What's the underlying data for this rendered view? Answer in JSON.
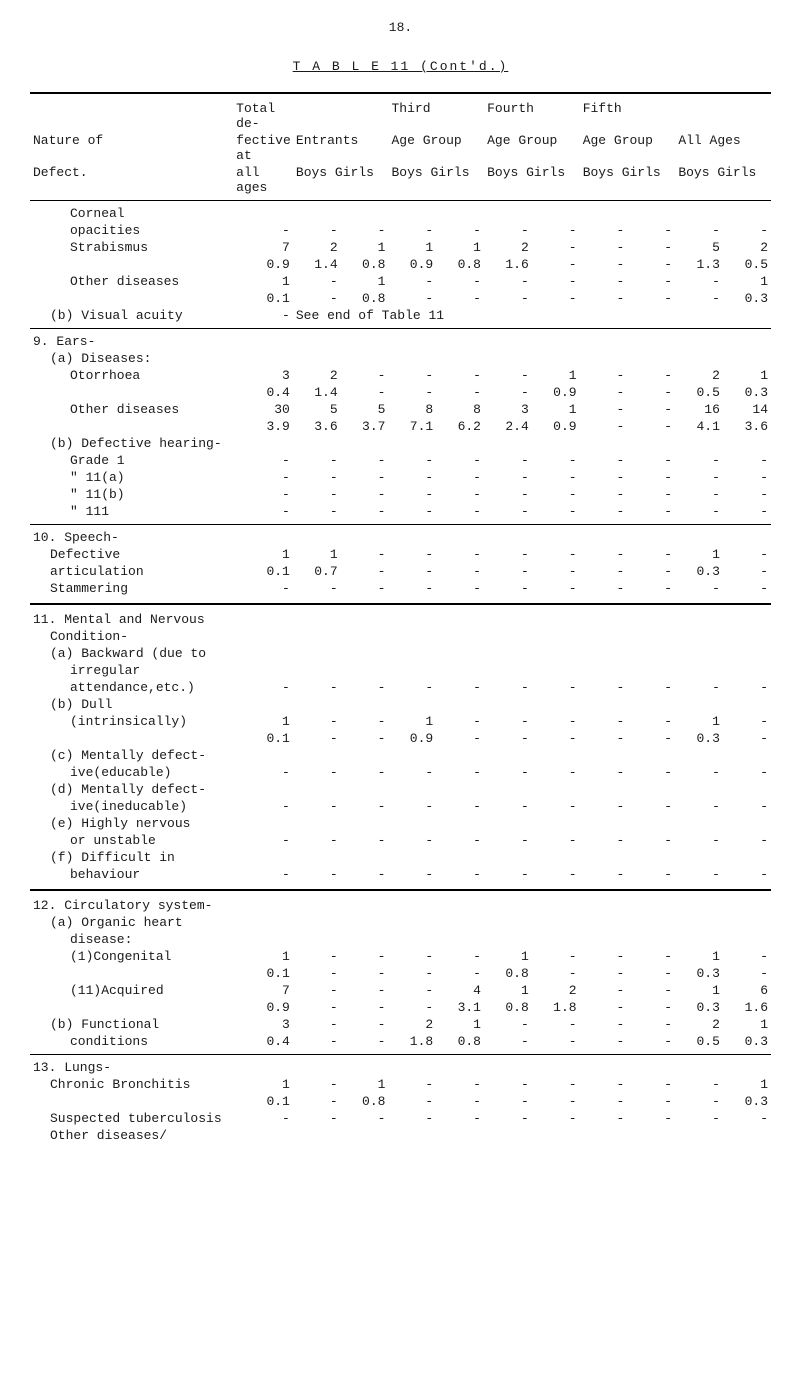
{
  "page": "18.",
  "tableTitle": "T A B L E  11 (Cont'd.)",
  "headers": {
    "nature": "Nature of",
    "defect": "Defect.",
    "totalDe": "Total de-",
    "fectiveAt": "fective at",
    "allAges": "all ages",
    "entrants": "Entrants",
    "boysGirls": "Boys Girls",
    "third": "Third",
    "ageGroup": "Age Group",
    "fourth": "Fourth",
    "fifth": "Fifth",
    "allAgesH": "All Ages"
  },
  "sections": {
    "corneal": "Corneal",
    "opacities": "opacities",
    "strabismus": "Strabismus",
    "otherDiseases": "Other diseases",
    "visualAcuity": "(b) Visual acuity",
    "seeEnd": "See end of Table 11",
    "ears": "9. Ears-",
    "diseases": "(a) Diseases:",
    "otorrhoea": "Otorrhoea",
    "defHearing": "(b) Defective hearing-",
    "grade1": "Grade 1",
    "g11a": "\"    11(a)",
    "g11b": "\"    11(b)",
    "g111": "\"    111",
    "speech": "10. Speech-",
    "defective": "Defective",
    "articulation": "articulation",
    "stammering": "Stammering",
    "mental": "11. Mental and Nervous",
    "condition": "Condition-",
    "backward": "(a) Backward (due to",
    "irregular": "irregular",
    "attendance": "attendance,etc.)",
    "dull": "(b) Dull",
    "intrins": "(intrinsically)",
    "mentDef": "(c) Mentally defect-",
    "iveEdu": "ive(educable)",
    "mentDef2": "(d) Mentally defect-",
    "iveInedu": "ive(ineducable)",
    "highly": "(e) Highly nervous",
    "orUnstable": "or unstable",
    "difficult": "(f) Difficult in",
    "behaviour": "behaviour",
    "circ": "12. Circulatory system-",
    "organic": "(a) Organic heart",
    "disease": "disease:",
    "congenital": "(1)Congenital",
    "acquired": "(11)Acquired",
    "functional": "(b) Functional",
    "conditions": "conditions",
    "lungs": "13. Lungs-",
    "chronic": "Chronic Bronchitis",
    "suspected": "Suspected tuberculosis",
    "otherDis": "Other diseases/"
  },
  "rows": {
    "strab1": [
      "7",
      "2",
      "1",
      "1",
      "1",
      "2",
      "-",
      "-",
      "-",
      "5",
      "2"
    ],
    "strab2": [
      "0.9",
      "1.4",
      "0.8",
      "0.9",
      "0.8",
      "1.6",
      "-",
      "-",
      "-",
      "1.3",
      "0.5"
    ],
    "othd1": [
      "1",
      "-",
      "1",
      "-",
      "-",
      "-",
      "-",
      "-",
      "-",
      "-",
      "1"
    ],
    "othd2": [
      "0.1",
      "-",
      "0.8",
      "-",
      "-",
      "-",
      "-",
      "-",
      "-",
      "-",
      "0.3"
    ],
    "otor1": [
      "3",
      "2",
      "-",
      "-",
      "-",
      "-",
      "1",
      "-",
      "-",
      "2",
      "1"
    ],
    "otor2": [
      "0.4",
      "1.4",
      "-",
      "-",
      "-",
      "-",
      "0.9",
      "-",
      "-",
      "0.5",
      "0.3"
    ],
    "othE1": [
      "30",
      "5",
      "5",
      "8",
      "8",
      "3",
      "1",
      "-",
      "-",
      "16",
      "14"
    ],
    "othE2": [
      "3.9",
      "3.6",
      "3.7",
      "7.1",
      "6.2",
      "2.4",
      "0.9",
      "-",
      "-",
      "4.1",
      "3.6"
    ],
    "def1": [
      "1",
      "1",
      "-",
      "-",
      "-",
      "-",
      "-",
      "-",
      "-",
      "1",
      "-"
    ],
    "art1": [
      "0.1",
      "0.7",
      "-",
      "-",
      "-",
      "-",
      "-",
      "-",
      "-",
      "0.3",
      "-"
    ],
    "intr1": [
      "1",
      "-",
      "-",
      "1",
      "-",
      "-",
      "-",
      "-",
      "-",
      "1",
      "-"
    ],
    "intr2": [
      "0.1",
      "-",
      "-",
      "0.9",
      "-",
      "-",
      "-",
      "-",
      "-",
      "0.3",
      "-"
    ],
    "cong1": [
      "1",
      "-",
      "-",
      "-",
      "-",
      "1",
      "-",
      "-",
      "-",
      "1",
      "-"
    ],
    "cong2": [
      "0.1",
      "-",
      "-",
      "-",
      "-",
      "0.8",
      "-",
      "-",
      "-",
      "0.3",
      "-"
    ],
    "acq1": [
      "7",
      "-",
      "-",
      "-",
      "4",
      "1",
      "2",
      "-",
      "-",
      "1",
      "6"
    ],
    "acq2": [
      "0.9",
      "-",
      "-",
      "-",
      "3.1",
      "0.8",
      "1.8",
      "-",
      "-",
      "0.3",
      "1.6"
    ],
    "func1": [
      "3",
      "-",
      "-",
      "2",
      "1",
      "-",
      "-",
      "-",
      "-",
      "2",
      "1"
    ],
    "cond1": [
      "0.4",
      "-",
      "-",
      "1.8",
      "0.8",
      "-",
      "-",
      "-",
      "-",
      "0.5",
      "0.3"
    ],
    "chr1": [
      "1",
      "-",
      "1",
      "-",
      "-",
      "-",
      "-",
      "-",
      "-",
      "-",
      "1"
    ],
    "chr2": [
      "0.1",
      "-",
      "0.8",
      "-",
      "-",
      "-",
      "-",
      "-",
      "-",
      "-",
      "0.3"
    ]
  },
  "dashRow": [
    "-",
    "-",
    "-",
    "-",
    "-",
    "-",
    "-",
    "-",
    "-",
    "-",
    "-"
  ]
}
